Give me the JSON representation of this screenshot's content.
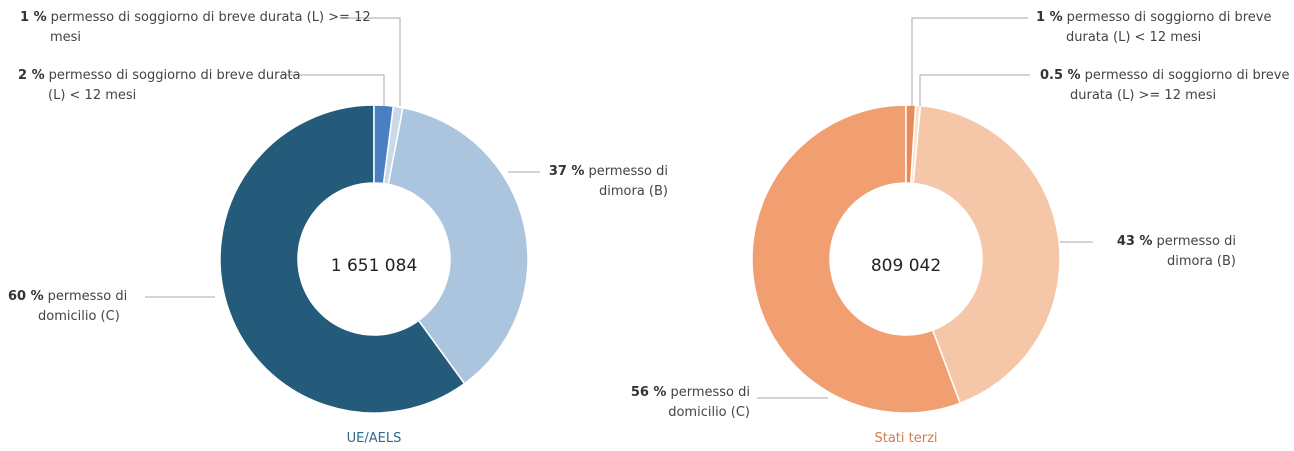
{
  "chart_data": [
    {
      "type": "donut",
      "title": "UE/AELS",
      "center_label": "1 651 084",
      "categories": [
        "permesso di soggiorno di breve durata (L) < 12 mesi",
        "permesso di soggiorno di breve durata (L) >= 12 mesi",
        "permesso di dimora (B)",
        "permesso di domicilio (C)"
      ],
      "values": [
        2,
        1,
        37,
        60
      ],
      "value_labels": [
        "2 %",
        "1 %",
        "37 %",
        "60 %"
      ],
      "colors": [
        "#4a7fc1",
        "#c9d9ea",
        "#abc5de",
        "#245b7a"
      ]
    },
    {
      "type": "donut",
      "title": "Stati terzi",
      "center_label": "809 042",
      "categories": [
        "permesso di soggiorno di breve durata (L) < 12 mesi",
        "permesso di soggiorno di breve durata (L) >= 12 mesi",
        "permesso di dimora (B)",
        "permesso di domicilio (C)"
      ],
      "values": [
        1,
        0.5,
        43,
        56
      ],
      "value_labels": [
        "1 %",
        "0.5 %",
        "43 %",
        "56 %"
      ],
      "colors": [
        "#ea8a58",
        "#fbe0cf",
        "#f6c6a8",
        "#f19e70"
      ]
    }
  ]
}
